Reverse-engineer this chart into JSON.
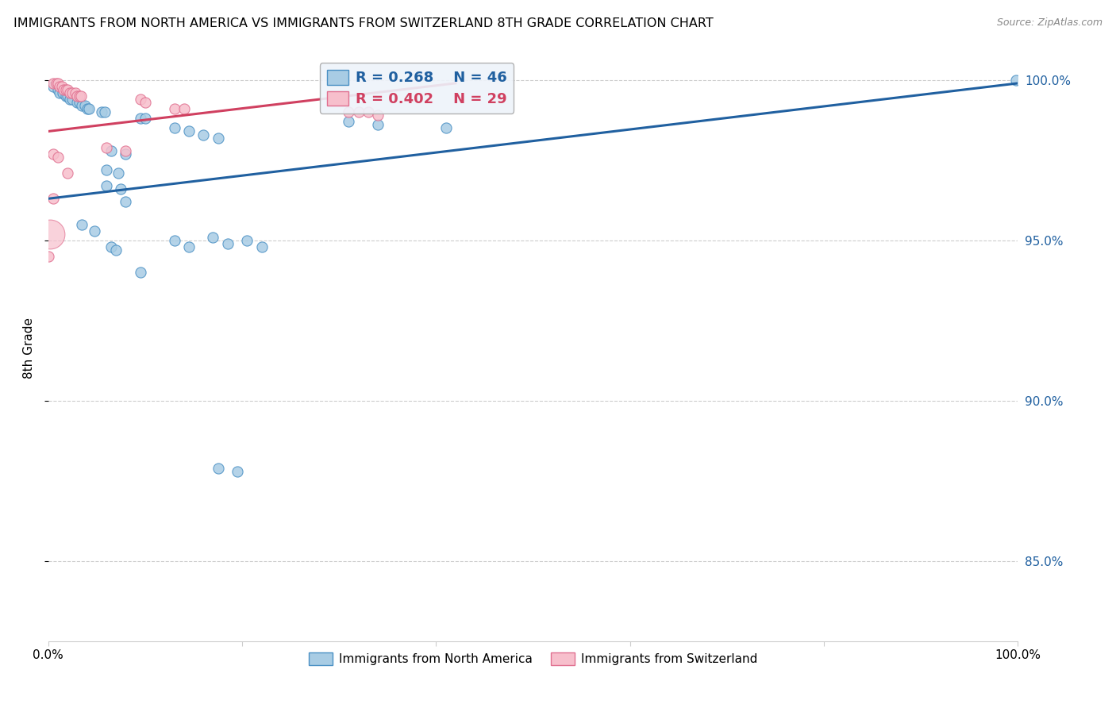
{
  "title": "IMMIGRANTS FROM NORTH AMERICA VS IMMIGRANTS FROM SWITZERLAND 8TH GRADE CORRELATION CHART",
  "source": "Source: ZipAtlas.com",
  "ylabel": "8th Grade",
  "xlim": [
    0.0,
    1.0
  ],
  "ylim": [
    0.825,
    1.008
  ],
  "legend_label_blue": "Immigrants from North America",
  "legend_label_pink": "Immigrants from Switzerland",
  "R_blue": 0.268,
  "N_blue": 46,
  "R_pink": 0.402,
  "N_pink": 29,
  "blue_color": "#a8cce4",
  "pink_color": "#f7bfcc",
  "blue_edge_color": "#4a90c4",
  "pink_edge_color": "#e07090",
  "blue_line_color": "#2060a0",
  "pink_line_color": "#d04060",
  "blue_points": [
    [
      0.005,
      0.998
    ],
    [
      0.01,
      0.997
    ],
    [
      0.012,
      0.996
    ],
    [
      0.015,
      0.996
    ],
    [
      0.018,
      0.995
    ],
    [
      0.02,
      0.995
    ],
    [
      0.022,
      0.994
    ],
    [
      0.025,
      0.994
    ],
    [
      0.03,
      0.993
    ],
    [
      0.032,
      0.993
    ],
    [
      0.035,
      0.992
    ],
    [
      0.038,
      0.992
    ],
    [
      0.04,
      0.991
    ],
    [
      0.042,
      0.991
    ],
    [
      0.055,
      0.99
    ],
    [
      0.058,
      0.99
    ],
    [
      0.095,
      0.988
    ],
    [
      0.1,
      0.988
    ],
    [
      0.13,
      0.985
    ],
    [
      0.145,
      0.984
    ],
    [
      0.16,
      0.983
    ],
    [
      0.175,
      0.982
    ],
    [
      0.065,
      0.978
    ],
    [
      0.08,
      0.977
    ],
    [
      0.06,
      0.972
    ],
    [
      0.072,
      0.971
    ],
    [
      0.06,
      0.967
    ],
    [
      0.075,
      0.966
    ],
    [
      0.08,
      0.962
    ],
    [
      0.035,
      0.955
    ],
    [
      0.048,
      0.953
    ],
    [
      0.065,
      0.948
    ],
    [
      0.07,
      0.947
    ],
    [
      0.095,
      0.94
    ],
    [
      0.13,
      0.95
    ],
    [
      0.145,
      0.948
    ],
    [
      0.17,
      0.951
    ],
    [
      0.185,
      0.949
    ],
    [
      0.205,
      0.95
    ],
    [
      0.22,
      0.948
    ],
    [
      0.175,
      0.879
    ],
    [
      0.195,
      0.878
    ],
    [
      0.998,
      1.0
    ],
    [
      0.31,
      0.987
    ],
    [
      0.34,
      0.986
    ],
    [
      0.41,
      0.985
    ]
  ],
  "pink_points": [
    [
      0.005,
      0.999
    ],
    [
      0.008,
      0.999
    ],
    [
      0.01,
      0.999
    ],
    [
      0.012,
      0.998
    ],
    [
      0.014,
      0.998
    ],
    [
      0.016,
      0.997
    ],
    [
      0.018,
      0.997
    ],
    [
      0.02,
      0.997
    ],
    [
      0.022,
      0.996
    ],
    [
      0.025,
      0.996
    ],
    [
      0.028,
      0.996
    ],
    [
      0.03,
      0.995
    ],
    [
      0.032,
      0.995
    ],
    [
      0.034,
      0.995
    ],
    [
      0.095,
      0.994
    ],
    [
      0.1,
      0.993
    ],
    [
      0.13,
      0.991
    ],
    [
      0.14,
      0.991
    ],
    [
      0.31,
      0.99
    ],
    [
      0.32,
      0.99
    ],
    [
      0.33,
      0.99
    ],
    [
      0.34,
      0.989
    ],
    [
      0.005,
      0.977
    ],
    [
      0.01,
      0.976
    ],
    [
      0.02,
      0.971
    ],
    [
      0.005,
      0.963
    ],
    [
      0.0,
      0.945
    ],
    [
      0.06,
      0.979
    ],
    [
      0.08,
      0.978
    ]
  ],
  "pink_large_point": [
    0.002,
    0.952
  ],
  "blue_line_x": [
    0.0,
    1.0
  ],
  "blue_line_y": [
    0.963,
    0.999
  ],
  "pink_line_x": [
    0.0,
    0.42
  ],
  "pink_line_y": [
    0.984,
    0.999
  ]
}
